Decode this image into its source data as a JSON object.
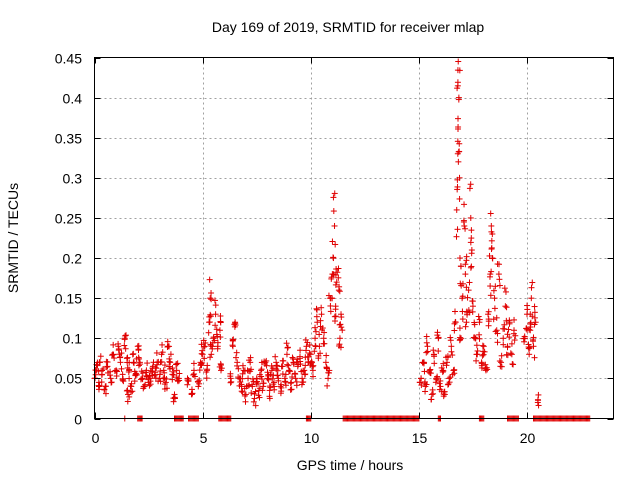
{
  "chart_data": {
    "type": "scatter",
    "title": "Day 169 of 2019, SRMTID for receiver mlap",
    "xlabel": "GPS time / hours",
    "ylabel": "SRMTID / TECUs",
    "xlim": [
      0,
      24
    ],
    "ylim": [
      0,
      0.45
    ],
    "x_ticks": [
      0,
      5,
      10,
      15,
      20
    ],
    "x_tick_labels": [
      "0",
      "5",
      "10",
      "15",
      "20"
    ],
    "y_ticks": [
      0,
      0.05,
      0.1,
      0.15,
      0.2,
      0.25,
      0.3,
      0.35,
      0.4,
      0.45
    ],
    "y_tick_labels": [
      "0",
      "0.05",
      "0.1",
      "0.15",
      "0.2",
      "0.25",
      "0.3",
      "0.35",
      "0.4",
      "0.45"
    ],
    "grid": true,
    "marker": "+",
    "color": "#e00000",
    "series": [
      {
        "name": "SRMTID",
        "points": [
          [
            0.0,
            0.05
          ],
          [
            0.1,
            0.06
          ],
          [
            0.2,
            0.045
          ],
          [
            0.25,
            0.07
          ],
          [
            0.35,
            0.055
          ],
          [
            0.5,
            0.04
          ],
          [
            0.6,
            0.065
          ],
          [
            0.75,
            0.05
          ],
          [
            0.85,
            0.08
          ],
          [
            1.0,
            0.06
          ],
          [
            1.1,
            0.09
          ],
          [
            1.2,
            0.07
          ],
          [
            1.3,
            0.055
          ],
          [
            1.4,
            0.1
          ],
          [
            1.5,
            0.075
          ],
          [
            1.6,
            0.06
          ],
          [
            1.7,
            0.04
          ],
          [
            1.8,
            0.07
          ],
          [
            1.9,
            0.055
          ],
          [
            1.4,
            0.0
          ],
          [
            1.55,
            0.03
          ],
          [
            2.0,
            0.09
          ],
          [
            2.1,
            0.07
          ],
          [
            2.2,
            0.05
          ],
          [
            2.3,
            0.04
          ],
          [
            2.4,
            0.06
          ],
          [
            2.5,
            0.045
          ],
          [
            2.6,
            0.05
          ],
          [
            2.7,
            0.065
          ],
          [
            2.8,
            0.055
          ],
          [
            2.9,
            0.07
          ],
          [
            3.0,
            0.05
          ],
          [
            3.1,
            0.08
          ],
          [
            3.2,
            0.06
          ],
          [
            3.3,
            0.045
          ],
          [
            3.4,
            0.09
          ],
          [
            3.5,
            0.07
          ],
          [
            3.6,
            0.055
          ],
          [
            3.7,
            0.03
          ],
          [
            3.8,
            0.06
          ],
          [
            3.9,
            0.05
          ],
          [
            4.3,
            0.05
          ],
          [
            4.5,
            0.03
          ],
          [
            4.6,
            0.06
          ],
          [
            4.8,
            0.04
          ],
          [
            4.9,
            0.07
          ],
          [
            5.0,
            0.08
          ],
          [
            5.1,
            0.09
          ],
          [
            5.2,
            0.06
          ],
          [
            5.3,
            0.12
          ],
          [
            5.35,
            0.15
          ],
          [
            5.4,
            0.08
          ],
          [
            5.5,
            0.1
          ],
          [
            5.6,
            0.13
          ],
          [
            5.7,
            0.09
          ],
          [
            5.8,
            0.11
          ],
          [
            5.85,
            0.06
          ],
          [
            6.3,
            0.05
          ],
          [
            6.4,
            0.09
          ],
          [
            6.5,
            0.12
          ],
          [
            6.6,
            0.07
          ],
          [
            6.7,
            0.05
          ],
          [
            6.8,
            0.04
          ],
          [
            6.9,
            0.06
          ],
          [
            7.0,
            0.03
          ],
          [
            7.1,
            0.05
          ],
          [
            7.2,
            0.07
          ],
          [
            7.3,
            0.04
          ],
          [
            7.4,
            0.025
          ],
          [
            7.5,
            0.05
          ],
          [
            7.6,
            0.035
          ],
          [
            7.7,
            0.06
          ],
          [
            7.8,
            0.04
          ],
          [
            7.9,
            0.07
          ],
          [
            8.0,
            0.05
          ],
          [
            8.1,
            0.035
          ],
          [
            8.2,
            0.06
          ],
          [
            8.3,
            0.045
          ],
          [
            8.4,
            0.07
          ],
          [
            8.5,
            0.05
          ],
          [
            8.6,
            0.04
          ],
          [
            8.7,
            0.065
          ],
          [
            8.8,
            0.05
          ],
          [
            8.9,
            0.08
          ],
          [
            9.0,
            0.06
          ],
          [
            9.1,
            0.045
          ],
          [
            9.2,
            0.07
          ],
          [
            9.3,
            0.05
          ],
          [
            9.4,
            0.065
          ],
          [
            9.5,
            0.075
          ],
          [
            9.6,
            0.05
          ],
          [
            9.7,
            0.06
          ],
          [
            9.8,
            0.09
          ],
          [
            9.9,
            0.07
          ],
          [
            10.0,
            0.08
          ],
          [
            10.1,
            0.06
          ],
          [
            10.2,
            0.1
          ],
          [
            10.3,
            0.12
          ],
          [
            10.4,
            0.09
          ],
          [
            10.5,
            0.13
          ],
          [
            10.6,
            0.1
          ],
          [
            10.7,
            0.07
          ],
          [
            10.8,
            0.05
          ],
          [
            10.9,
            0.15
          ],
          [
            11.0,
            0.18
          ],
          [
            11.05,
            0.2
          ],
          [
            11.1,
            0.24
          ],
          [
            11.15,
            0.14
          ],
          [
            11.2,
            0.17
          ],
          [
            11.3,
            0.16
          ],
          [
            11.35,
            0.1
          ],
          [
            11.4,
            0.13
          ],
          [
            15.1,
            0.05
          ],
          [
            15.2,
            0.07
          ],
          [
            15.3,
            0.04
          ],
          [
            15.4,
            0.09
          ],
          [
            15.5,
            0.06
          ],
          [
            15.6,
            0.03
          ],
          [
            15.7,
            0.08
          ],
          [
            15.8,
            0.05
          ],
          [
            15.9,
            0.1
          ],
          [
            16.0,
            0.04
          ],
          [
            16.1,
            0.06
          ],
          [
            16.2,
            0.03
          ],
          [
            16.3,
            0.07
          ],
          [
            16.4,
            0.05
          ],
          [
            16.5,
            0.09
          ],
          [
            16.6,
            0.06
          ],
          [
            16.7,
            0.12
          ],
          [
            16.75,
            0.26
          ],
          [
            16.8,
            0.33
          ],
          [
            16.82,
            0.445
          ],
          [
            16.85,
            0.4
          ],
          [
            16.88,
            0.3
          ],
          [
            16.9,
            0.2
          ],
          [
            16.95,
            0.1
          ],
          [
            17.0,
            0.15
          ],
          [
            17.1,
            0.24
          ],
          [
            17.15,
            0.18
          ],
          [
            17.2,
            0.12
          ],
          [
            17.3,
            0.16
          ],
          [
            17.4,
            0.25
          ],
          [
            17.45,
            0.21
          ],
          [
            17.5,
            0.14
          ],
          [
            17.6,
            0.1
          ],
          [
            17.7,
            0.08
          ],
          [
            17.8,
            0.12
          ],
          [
            17.9,
            0.07
          ],
          [
            18.0,
            0.09
          ],
          [
            18.1,
            0.06
          ],
          [
            18.2,
            0.13
          ],
          [
            18.3,
            0.18
          ],
          [
            18.35,
            0.24
          ],
          [
            18.4,
            0.2
          ],
          [
            18.5,
            0.15
          ],
          [
            18.6,
            0.11
          ],
          [
            18.7,
            0.18
          ],
          [
            18.8,
            0.07
          ],
          [
            18.9,
            0.1
          ],
          [
            19.0,
            0.14
          ],
          [
            19.1,
            0.09
          ],
          [
            19.2,
            0.12
          ],
          [
            19.3,
            0.08
          ],
          [
            19.4,
            0.11
          ],
          [
            19.9,
            0.1
          ],
          [
            20.0,
            0.13
          ],
          [
            20.1,
            0.08
          ],
          [
            20.15,
            0.11
          ],
          [
            20.2,
            0.15
          ],
          [
            20.3,
            0.09
          ],
          [
            20.4,
            0.12
          ],
          [
            20.5,
            0.02
          ]
        ]
      }
    ],
    "zero_bands": [
      [
        2.0,
        2.2
      ],
      [
        3.7,
        4.1
      ],
      [
        4.35,
        4.8
      ],
      [
        5.75,
        6.3
      ],
      [
        9.8,
        10.0
      ],
      [
        11.5,
        15.0
      ],
      [
        15.9,
        16.0
      ],
      [
        17.8,
        18.0
      ],
      [
        19.1,
        19.6
      ],
      [
        20.3,
        22.9
      ]
    ]
  }
}
